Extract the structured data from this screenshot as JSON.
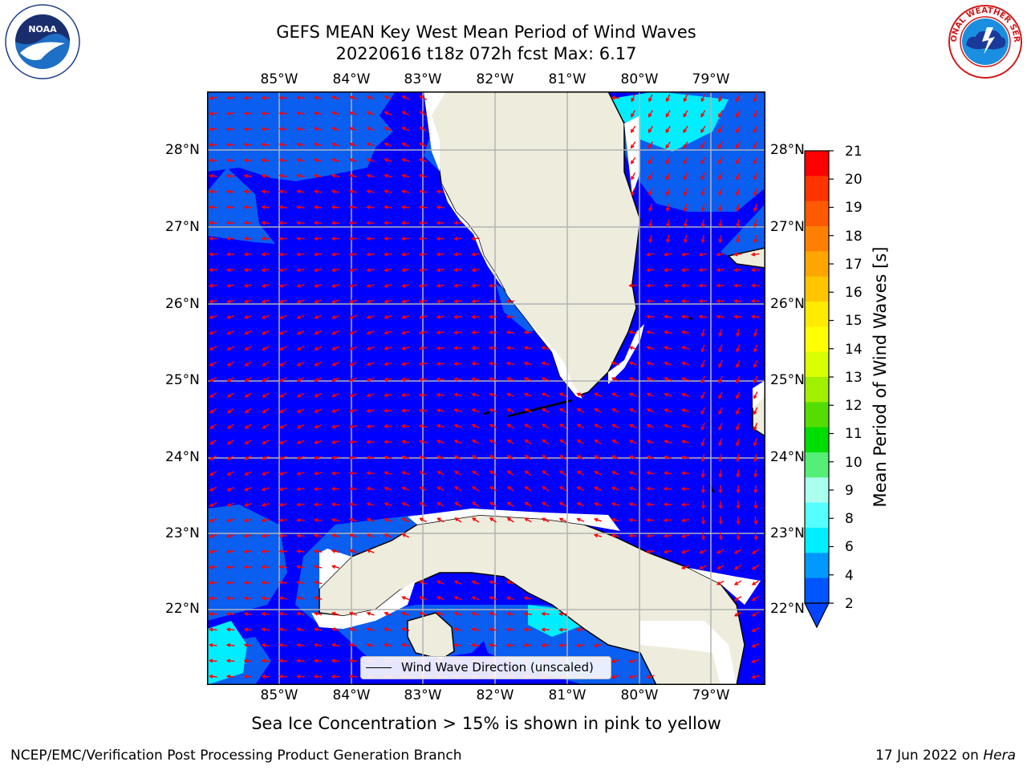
{
  "title": {
    "line1": "GEFS MEAN Key West Mean Period of Wind Waves",
    "line2": "20220616 t18z 072h fcst   Max: 6.17"
  },
  "logos": {
    "left": "NOAA",
    "left_ring_text": "NATIONAL OCEANIC AND ATMOSPHERIC ADMINISTRATION · U.S. DEPARTMENT OF COMMERCE",
    "right": "NATIONAL WEATHER SERVICE"
  },
  "map": {
    "lon_labels": [
      "85°W",
      "84°W",
      "83°W",
      "82°W",
      "81°W",
      "80°W",
      "79°W"
    ],
    "lat_labels": [
      "28°N",
      "27°N",
      "26°N",
      "25°N",
      "24°N",
      "23°N",
      "22°N"
    ],
    "ocean_color": "#0000ff",
    "land_color": "#eeecdc",
    "arrow_color": "#ff0000",
    "legend_label": "Wind Wave Direction (unscaled)"
  },
  "colorbar": {
    "label": "Mean Period of Wind Waves [s]",
    "ticks": [
      "21",
      "20",
      "19",
      "18",
      "17",
      "16",
      "15",
      "14",
      "13",
      "12",
      "11",
      "10",
      "9",
      "8",
      "6",
      "4",
      "2"
    ],
    "colors_top_to_bottom": [
      "#ff0000",
      "#ff3300",
      "#ff5a00",
      "#ff8000",
      "#ffa500",
      "#ffc600",
      "#ffea00",
      "#ffff00",
      "#d9ff00",
      "#a0f000",
      "#55dd00",
      "#00dd00",
      "#55ee77",
      "#aaffee",
      "#55ffff",
      "#00eeff",
      "#0099ff",
      "#0055ff"
    ]
  },
  "caption": "Sea Ice Concentration > 15% is shown in pink to yellow",
  "footer": {
    "left": "NCEP/EMC/Verification Post Processing Product Generation Branch",
    "right_prefix": "17 Jun 2022 on ",
    "right_host": "Hera"
  }
}
